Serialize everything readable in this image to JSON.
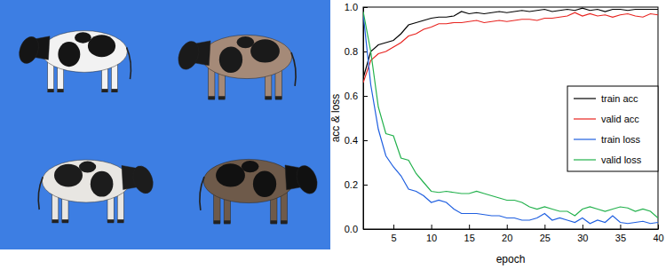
{
  "chart_data": {
    "type": "line",
    "x_label": "epoch",
    "y_label": "acc & loss",
    "x": [
      1,
      2,
      3,
      4,
      5,
      6,
      7,
      8,
      9,
      10,
      11,
      12,
      13,
      14,
      15,
      16,
      17,
      18,
      19,
      20,
      21,
      22,
      23,
      24,
      25,
      26,
      27,
      28,
      29,
      30,
      31,
      32,
      33,
      34,
      35,
      36,
      37,
      38,
      39,
      40
    ],
    "series": [
      {
        "name": "train acc",
        "color": "#000000",
        "values": [
          0.68,
          0.8,
          0.83,
          0.84,
          0.85,
          0.88,
          0.92,
          0.93,
          0.94,
          0.95,
          0.955,
          0.955,
          0.96,
          0.98,
          0.97,
          0.975,
          0.97,
          0.975,
          0.98,
          0.975,
          0.98,
          0.985,
          0.98,
          0.985,
          0.99,
          0.98,
          0.985,
          0.99,
          0.985,
          0.995,
          0.985,
          0.99,
          0.98,
          0.99,
          0.99,
          0.985,
          0.99,
          0.99,
          0.99,
          0.99
        ]
      },
      {
        "name": "valid acc",
        "color": "#e8231f",
        "values": [
          0.66,
          0.76,
          0.79,
          0.8,
          0.82,
          0.84,
          0.87,
          0.88,
          0.9,
          0.91,
          0.925,
          0.925,
          0.93,
          0.93,
          0.935,
          0.94,
          0.93,
          0.935,
          0.94,
          0.935,
          0.94,
          0.945,
          0.945,
          0.94,
          0.95,
          0.95,
          0.955,
          0.96,
          0.975,
          0.96,
          0.97,
          0.96,
          0.965,
          0.955,
          0.965,
          0.97,
          0.96,
          0.955,
          0.97,
          0.965
        ]
      },
      {
        "name": "train loss",
        "color": "#1f5fe0",
        "values": [
          0.97,
          0.65,
          0.45,
          0.33,
          0.28,
          0.24,
          0.18,
          0.17,
          0.15,
          0.12,
          0.13,
          0.12,
          0.09,
          0.07,
          0.07,
          0.07,
          0.065,
          0.06,
          0.06,
          0.05,
          0.05,
          0.04,
          0.04,
          0.05,
          0.07,
          0.04,
          0.05,
          0.04,
          0.03,
          0.05,
          0.025,
          0.04,
          0.03,
          0.06,
          0.03,
          0.025,
          0.03,
          0.035,
          0.025,
          0.03
        ]
      },
      {
        "name": "valid loss",
        "color": "#22b14c",
        "values": [
          0.98,
          0.8,
          0.55,
          0.43,
          0.42,
          0.32,
          0.31,
          0.25,
          0.21,
          0.17,
          0.165,
          0.17,
          0.165,
          0.16,
          0.16,
          0.17,
          0.16,
          0.15,
          0.14,
          0.13,
          0.13,
          0.12,
          0.1,
          0.09,
          0.1,
          0.09,
          0.08,
          0.08,
          0.06,
          0.09,
          0.1,
          0.09,
          0.08,
          0.09,
          0.1,
          0.095,
          0.08,
          0.09,
          0.08,
          0.05
        ]
      }
    ],
    "xlim": [
      1,
      40
    ],
    "xticks": [
      5,
      10,
      15,
      20,
      25,
      30,
      35,
      40
    ],
    "ylim": [
      0,
      1
    ],
    "yticks": [
      {
        "value": 0,
        "label": "0.0"
      },
      {
        "value": 0.2,
        "label": "0.2"
      },
      {
        "value": 0.4,
        "label": "0.4"
      },
      {
        "value": 0.6,
        "label": "0.6"
      },
      {
        "value": 0.8,
        "label": "0.8"
      },
      {
        "value": 1,
        "label": "1.0"
      }
    ],
    "legend": "right",
    "grid": false
  }
}
